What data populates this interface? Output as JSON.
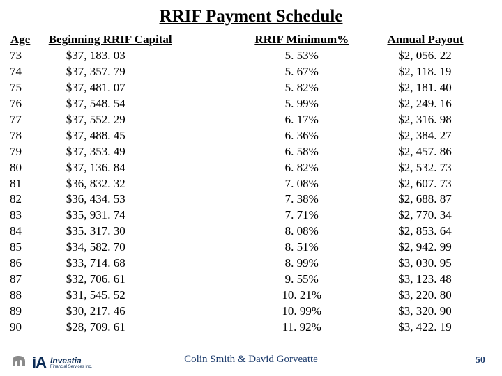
{
  "title": "RRIF Payment Schedule",
  "columns": [
    "Age",
    "Beginning RRIF Capital",
    "RRIF Minimum%",
    "Annual Payout"
  ],
  "rows": [
    {
      "age": "73",
      "capital": "$37, 183. 03",
      "min": "5. 53%",
      "payout": "$2, 056. 22"
    },
    {
      "age": "74",
      "capital": "$37, 357. 79",
      "min": "5. 67%",
      "payout": "$2, 118. 19"
    },
    {
      "age": "75",
      "capital": "$37, 481. 07",
      "min": "5. 82%",
      "payout": "$2, 181. 40"
    },
    {
      "age": "76",
      "capital": "$37, 548. 54",
      "min": "5. 99%",
      "payout": "$2, 249. 16"
    },
    {
      "age": "77",
      "capital": "$37, 552. 29",
      "min": "6. 17%",
      "payout": "$2, 316. 98"
    },
    {
      "age": "78",
      "capital": "$37, 488. 45",
      "min": "6. 36%",
      "payout": "$2, 384. 27"
    },
    {
      "age": "79",
      "capital": "$37, 353. 49",
      "min": "6. 58%",
      "payout": "$2, 457. 86"
    },
    {
      "age": "80",
      "capital": "$37, 136. 84",
      "min": "6. 82%",
      "payout": "$2, 532. 73"
    },
    {
      "age": "81",
      "capital": "$36, 832. 32",
      "min": "7. 08%",
      "payout": "$2, 607. 73"
    },
    {
      "age": "82",
      "capital": "$36, 434. 53",
      "min": "7. 38%",
      "payout": "$2, 688. 87"
    },
    {
      "age": "83",
      "capital": "$35, 931. 74",
      "min": "7. 71%",
      "payout": "$2, 770. 34"
    },
    {
      "age": "84",
      "capital": "$35. 317. 30",
      "min": "8. 08%",
      "payout": "$2, 853. 64"
    },
    {
      "age": "85",
      "capital": "$34, 582. 70",
      "min": "8. 51%",
      "payout": "$2, 942. 99"
    },
    {
      "age": "86",
      "capital": "$33, 714. 68",
      "min": "8. 99%",
      "payout": "$3, 030. 95"
    },
    {
      "age": "87",
      "capital": "$32, 706. 61",
      "min": "9. 55%",
      "payout": "$3, 123. 48"
    },
    {
      "age": "88",
      "capital": "$31, 545. 52",
      "min": "10. 21%",
      "payout": "$3, 220. 80"
    },
    {
      "age": "89",
      "capital": "$30, 217. 46",
      "min": "10. 99%",
      "payout": "$3, 320. 90"
    },
    {
      "age": "90",
      "capital": "$28, 709. 61",
      "min": "11. 92%",
      "payout": "$3, 422. 19"
    }
  ],
  "footer": "Colin Smith & David Gorveatte",
  "page": "50",
  "logo": {
    "ia": "iA",
    "brand": "Investia",
    "sub": "Financial Services Inc."
  },
  "colors": {
    "text": "#000000",
    "accent": "#1b3a6b",
    "logo_navy": "#0b2b55",
    "logo_grey": "#7a7a7a",
    "background": "#ffffff"
  },
  "typography": {
    "body_fontsize": 17,
    "title_fontsize": 25,
    "footer_fontsize": 15
  }
}
